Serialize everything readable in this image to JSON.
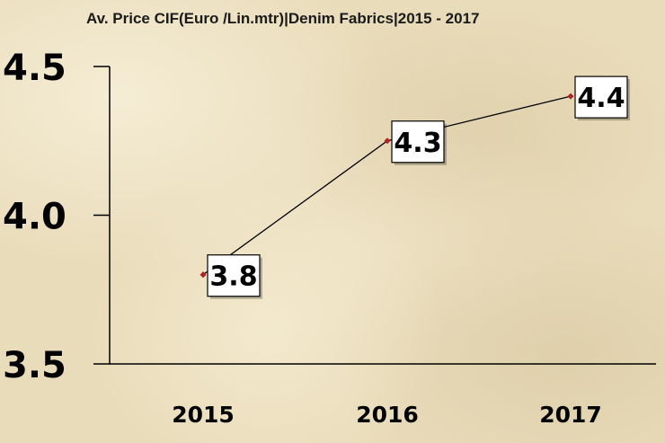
{
  "chart_data": {
    "type": "line",
    "title": "Av. Price CIF(Euro /Lin.mtr)|Denim Fabrics|2015 - 2017",
    "categories": [
      "2015",
      "2016",
      "2017"
    ],
    "series": [
      {
        "values": [
          3.8,
          4.25,
          4.4
        ],
        "labels": [
          "3.8",
          "4.3",
          "4.4"
        ]
      }
    ],
    "yticks": [
      "3.5",
      "4.0",
      "4.5"
    ],
    "ylim": [
      3.5,
      4.5
    ],
    "grid": false,
    "legend": "none",
    "colors": {
      "line": "#000000",
      "marker": "#b22222",
      "label_box": "#ffffff"
    }
  }
}
